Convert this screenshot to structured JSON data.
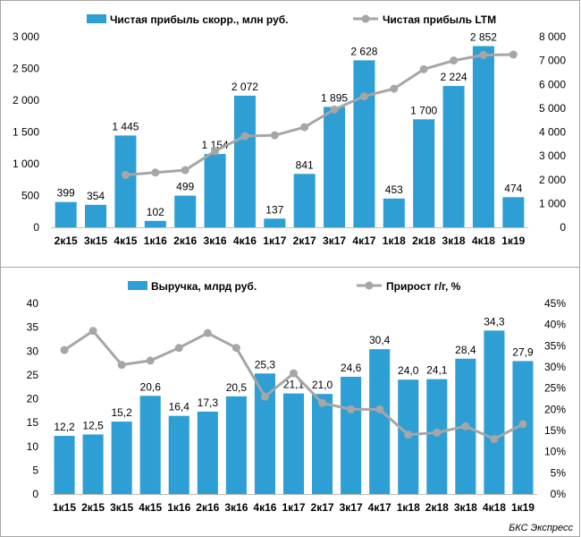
{
  "colors": {
    "bar": "#2e9fd4",
    "line": "#a6a6a6",
    "marker": "#a6a6a6"
  },
  "chart_data": [
    {
      "type": "bar",
      "title": "",
      "categories": [
        "2к15",
        "3к15",
        "4к15",
        "1к16",
        "2к16",
        "3к16",
        "4к16",
        "1к17",
        "2к17",
        "3к17",
        "4к17",
        "1к18",
        "2к18",
        "3к18",
        "4к18",
        "1к19"
      ],
      "series": [
        {
          "name": "Чистая прибыль скорр., млн руб.",
          "type": "bar",
          "axis": "left",
          "values": [
            399,
            354,
            1445,
            102,
            499,
            1154,
            2072,
            137,
            841,
            1895,
            2628,
            453,
            1700,
            2224,
            2852,
            474
          ],
          "labels": [
            "399",
            "354",
            "1 445",
            "102",
            "499",
            "1 154",
            "2 072",
            "137",
            "841",
            "1 895",
            "2 628",
            "453",
            "1 700",
            "2 224",
            "2 852",
            "474"
          ]
        },
        {
          "name": "Чистая прибыль LTM",
          "type": "line",
          "axis": "right",
          "values": [
            null,
            null,
            2198,
            2300,
            2400,
            3200,
            3827,
            3862,
            4204,
            4945,
            5501,
            5817,
            6635,
            7000,
            7228,
            7249
          ]
        }
      ],
      "yleft": {
        "min": 0,
        "max": 3000,
        "ticks": [
          "0",
          "500",
          "1 000",
          "1 500",
          "2 000",
          "2 500",
          "3 000"
        ]
      },
      "yright": {
        "min": 0,
        "max": 8000,
        "ticks": [
          "0",
          "1 000",
          "2 000",
          "3 000",
          "4 000",
          "5 000",
          "6 000",
          "7 000",
          "8 000"
        ]
      },
      "legend": "top"
    },
    {
      "type": "bar",
      "title": "",
      "categories": [
        "1к15",
        "2к15",
        "3к15",
        "4к15",
        "1к16",
        "2к16",
        "3к16",
        "4к16",
        "1к17",
        "2к17",
        "3к17",
        "4к17",
        "1к18",
        "2к18",
        "3к18",
        "4к18",
        "1к19"
      ],
      "series": [
        {
          "name": "Выручка, млрд руб.",
          "type": "bar",
          "axis": "left",
          "values": [
            12.2,
            12.5,
            15.2,
            20.6,
            16.4,
            17.3,
            20.5,
            25.3,
            21.1,
            21.0,
            24.6,
            30.4,
            24.0,
            24.1,
            28.4,
            34.3,
            27.9
          ],
          "labels": [
            "12,2",
            "12,5",
            "15,2",
            "20,6",
            "16,4",
            "17,3",
            "20,5",
            "25,3",
            "21,1",
            "21,0",
            "24,6",
            "30,4",
            "24,0",
            "24,1",
            "28,4",
            "34,3",
            "27,9"
          ]
        },
        {
          "name": "Прирост г/г, %",
          "type": "line",
          "axis": "right",
          "values": [
            34,
            38.5,
            30.5,
            31.5,
            34.5,
            38,
            34.5,
            23,
            28.5,
            21.5,
            20,
            20,
            14,
            14.5,
            16,
            13,
            16.5
          ]
        }
      ],
      "yleft": {
        "min": 0,
        "max": 40,
        "ticks": [
          "0",
          "5",
          "10",
          "15",
          "20",
          "25",
          "30",
          "35",
          "40"
        ]
      },
      "yright": {
        "min": 0,
        "max": 45,
        "ticks": [
          "0%",
          "5%",
          "10%",
          "15%",
          "20%",
          "25%",
          "30%",
          "35%",
          "40%",
          "45%"
        ]
      },
      "legend": "top"
    }
  ],
  "source": "БКС Экспресс"
}
